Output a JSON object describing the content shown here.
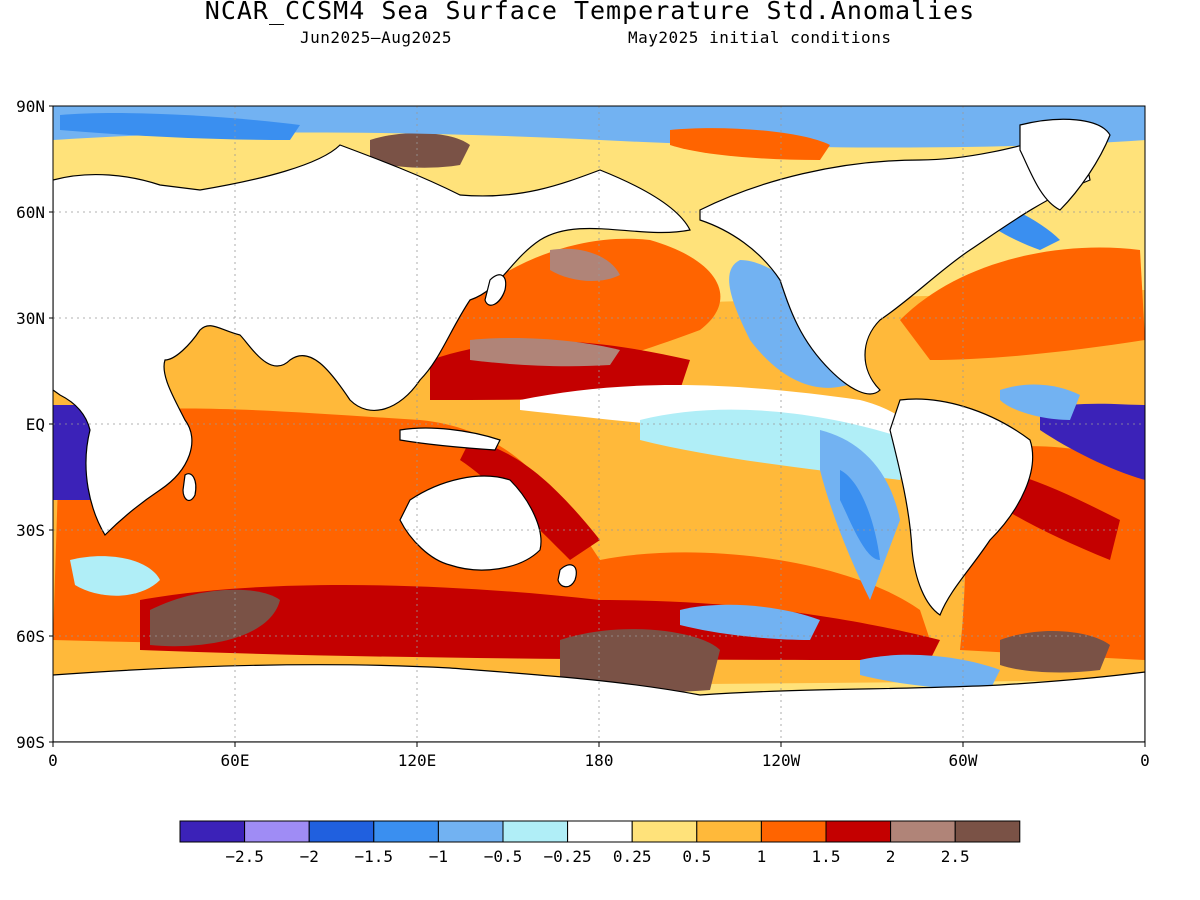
{
  "title": "NCAR_CCSM4 Sea Surface Temperature Std.Anomalies",
  "subtitle_left": "Jun2025–Aug2025",
  "subtitle_right": "May2025 initial conditions",
  "map": {
    "projection": "cylindrical equidistant",
    "lon_range": [
      0,
      360
    ],
    "lat_range": [
      -90,
      90
    ],
    "grid": true,
    "lat_ticks": [
      {
        "lat": 90,
        "label": "90N"
      },
      {
        "lat": 60,
        "label": "60N"
      },
      {
        "lat": 30,
        "label": "30N"
      },
      {
        "lat": 0,
        "label": "EQ"
      },
      {
        "lat": -30,
        "label": "30S"
      },
      {
        "lat": -60,
        "label": "60S"
      },
      {
        "lat": -90,
        "label": "90S"
      }
    ],
    "lon_ticks": [
      {
        "lon": 0,
        "label": "0"
      },
      {
        "lon": 60,
        "label": "60E"
      },
      {
        "lon": 120,
        "label": "120E"
      },
      {
        "lon": 180,
        "label": "180"
      },
      {
        "lon": 240,
        "label": "120W"
      },
      {
        "lon": 300,
        "label": "60W"
      },
      {
        "lon": 360,
        "label": "0"
      }
    ]
  },
  "colorbar": {
    "colors": [
      "#3b22b8",
      "#9f8cf5",
      "#2060df",
      "#3a8ff0",
      "#72b2f2",
      "#b0eef7",
      "#ffffff",
      "#ffe27a",
      "#ffb93a",
      "#ff6400",
      "#c40000",
      "#b08478",
      "#7a5246"
    ],
    "labels": [
      "-2.5",
      "-2",
      "-1.5",
      "-1",
      "-0.5",
      "-0.25",
      "0.25",
      "0.5",
      "1",
      "1.5",
      "2",
      "2.5"
    ]
  }
}
